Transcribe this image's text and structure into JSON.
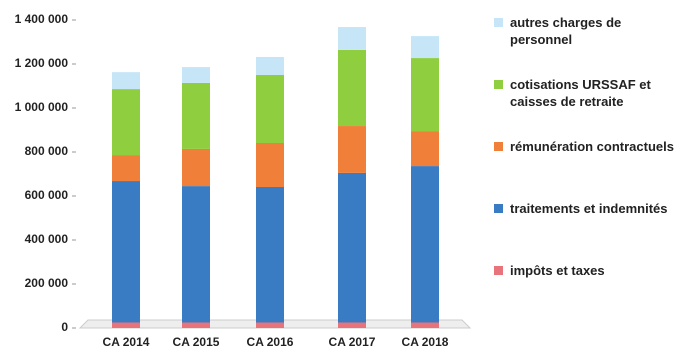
{
  "chart_data": {
    "type": "stacked_bar",
    "categories": [
      "CA 2014",
      "CA 2015",
      "CA 2016",
      "CA 2017",
      "CA 2018"
    ],
    "series": [
      {
        "name": "impôts et taxes",
        "color": "#e8737a",
        "values": [
          25000,
          25000,
          25000,
          25000,
          25000
        ]
      },
      {
        "name": "traitements et indemnités",
        "color": "#3a7cc3",
        "values": [
          643000,
          620000,
          616000,
          680000,
          711000
        ]
      },
      {
        "name": "rémunération contractuels",
        "color": "#f07f3a",
        "values": [
          118000,
          169000,
          200000,
          213000,
          159000
        ]
      },
      {
        "name": "cotisations URSSAF et caisses de retraite",
        "color": "#8fce3e",
        "values": [
          300000,
          300000,
          309000,
          346000,
          332000
        ]
      },
      {
        "name": "autres charges de personnel",
        "color": "#c6e6f7",
        "values": [
          77000,
          72000,
          82000,
          104000,
          100000
        ]
      }
    ],
    "ylim": [
      0,
      1400000
    ],
    "yticks": [
      0,
      {
        "value": 200000,
        "label": "200 000"
      },
      {
        "value": 400000,
        "label": "400 000"
      },
      {
        "value": 600000,
        "label": "600 000"
      },
      {
        "value": 800000,
        "label": "800 000"
      },
      {
        "value": 1000000,
        "label": "1 000 000"
      },
      {
        "value": 1200000,
        "label": "1 200 000"
      },
      {
        "value": 1400000,
        "label": "1 400 000"
      }
    ],
    "legend": "right"
  }
}
